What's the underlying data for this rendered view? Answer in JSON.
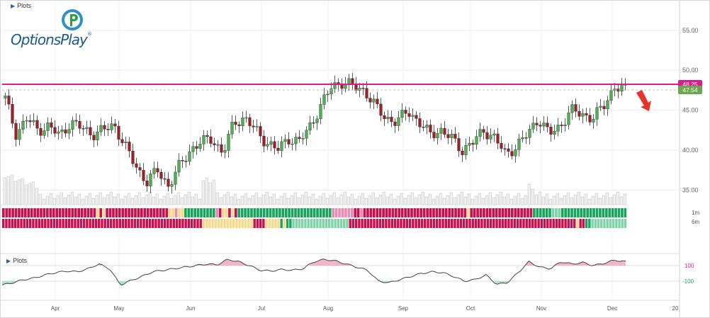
{
  "app": {
    "brand": "OptionsPlay",
    "brand_mark": "®",
    "plots_label_top": "Plots",
    "plots_label_bottom": "Plots"
  },
  "colors": {
    "up": "#4caf50",
    "down": "#9e1f24",
    "resistance": "#e0198a",
    "last": "#6aa84f",
    "green_strip": "#1aa35b",
    "light_green_strip": "#7fd3a6",
    "red_strip": "#c8104f",
    "pink_strip": "#e98bb0",
    "yellow_strip": "#f7d98b",
    "osc_pos": "#f4a7bf",
    "osc_neg": "#9fe0c0"
  },
  "chart_data": {
    "type": "candlestick",
    "y_axis": {
      "ticks": [
        "55.00",
        "50.00",
        "45.00",
        "40.00",
        "35.00"
      ],
      "range": [
        33,
        58
      ]
    },
    "x_labels": [
      "Apr",
      "May",
      "Jun",
      "Jul",
      "Aug",
      "Sep",
      "Oct",
      "Nov",
      "Dec",
      "20"
    ],
    "resistance_level": 48.25,
    "resistance_label": "48.25",
    "last_price": 47.54,
    "last_price_label": "47.54",
    "signal_arrow": "down-arrow",
    "trend_strip_labels": [
      "1m",
      "6m"
    ],
    "oscillator_levels": [
      "100",
      "-100"
    ],
    "price_path": [
      46.5,
      42.0,
      44.0,
      42.5,
      43.0,
      41.8,
      43.5,
      42.8,
      42.0,
      42.5,
      43.2,
      40.5,
      38.0,
      36.0,
      37.5,
      35.5,
      38.0,
      40.0,
      41.0,
      41.5,
      39.5,
      43.5,
      44.0,
      42.5,
      41.0,
      40.0,
      41.5,
      41.0,
      43.0,
      45.5,
      48.0,
      48.5,
      48.0,
      47.5,
      45.5,
      44.0,
      43.5,
      45.0,
      43.5,
      42.0,
      42.5,
      41.5,
      40.0,
      41.0,
      42.5,
      41.5,
      39.5,
      40.5,
      42.0,
      44.0,
      42.0,
      43.0,
      45.0,
      44.5,
      44.0,
      45.5,
      48.0,
      47.5
    ],
    "trend_1m_pattern": "RRRRRRRRRRRRRRRRRRRRRRRRRRRRRRYRYRRRRRRRRRRRRRRRRRRRRYYPYYGGGGGGGGGGPRYYRYRGGGGGGGGGGGGGGGGGGGGGGGGGGGGGGPPPPPPPRRPRRRRRRRRRRRRRRRRRRRRRRRRRRRRRRRRRYRRRRRRRRRRRRRRRRRRRRGGGGGGLLLGGGGGGGGGGGGGGGGGGGGG",
    "trend_6m_pattern": "RRRRRRRRRRRRRRRRRRRRRRRRRRRRRRRRRRRRRRRRRRRRRRRRRRRRRRRRRRRRRRRRRRRYYYYYYYYYYYYYYYYYRRRRYYYYYGYGGLLLLLLLLLLLLLLLLLLLRRRRRRRRRRRRRRRRRRRRRRRRRRRRRRRRRRRRRRRRRRRRRRRRRRRRRRRRRRRRRRRRRRRRRRRRRRRRYRRGGLLLLLLLLLLLL",
    "oscillator_path": [
      -150,
      -120,
      -80,
      -60,
      -20,
      10,
      30,
      20,
      60,
      120,
      60,
      -150,
      -90,
      -40,
      20,
      40,
      60,
      80,
      100,
      120,
      110,
      180,
      150,
      100,
      40,
      30,
      50,
      40,
      60,
      150,
      180,
      160,
      120,
      80,
      40,
      -100,
      -120,
      -80,
      -40,
      0,
      20,
      10,
      -40,
      -100,
      -80,
      -20,
      -140,
      -120,
      10,
      150,
      80,
      60,
      150,
      120,
      140,
      100,
      130,
      170,
      150
    ]
  }
}
